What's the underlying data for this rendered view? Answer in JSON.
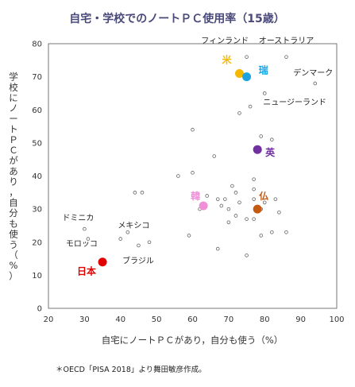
{
  "chart_data": {
    "type": "scatter",
    "title": "自宅・学校でのノートＰＣ使用率（15歳）",
    "xlabel": "自宅にノートＰＣがあり，自分も使う（%）",
    "ylabel": "学校にノートＰＣがあり，自分も使う（%）",
    "xlim": [
      20,
      100
    ],
    "ylim": [
      0,
      80
    ],
    "xticks": [
      20,
      30,
      40,
      50,
      60,
      70,
      80,
      90,
      100
    ],
    "yticks": [
      0,
      10,
      20,
      30,
      40,
      50,
      60,
      70,
      80
    ],
    "grid": false,
    "points": [
      {
        "x": 75,
        "y": 76
      },
      {
        "x": 86,
        "y": 76
      },
      {
        "x": 94,
        "y": 68
      },
      {
        "x": 80,
        "y": 65
      },
      {
        "x": 76,
        "y": 61
      },
      {
        "x": 73,
        "y": 59
      },
      {
        "x": 60,
        "y": 54
      },
      {
        "x": 79,
        "y": 52
      },
      {
        "x": 82,
        "y": 51
      },
      {
        "x": 66,
        "y": 46
      },
      {
        "x": 60,
        "y": 41
      },
      {
        "x": 56,
        "y": 40
      },
      {
        "x": 77,
        "y": 39
      },
      {
        "x": 44,
        "y": 35
      },
      {
        "x": 46,
        "y": 35
      },
      {
        "x": 71,
        "y": 37
      },
      {
        "x": 72,
        "y": 35
      },
      {
        "x": 77,
        "y": 36
      },
      {
        "x": 64,
        "y": 34
      },
      {
        "x": 67,
        "y": 33
      },
      {
        "x": 69,
        "y": 33
      },
      {
        "x": 73,
        "y": 32
      },
      {
        "x": 77,
        "y": 33
      },
      {
        "x": 80,
        "y": 32
      },
      {
        "x": 83,
        "y": 33
      },
      {
        "x": 62,
        "y": 30
      },
      {
        "x": 68,
        "y": 31
      },
      {
        "x": 70,
        "y": 30
      },
      {
        "x": 79,
        "y": 30
      },
      {
        "x": 84,
        "y": 29
      },
      {
        "x": 72,
        "y": 28
      },
      {
        "x": 75,
        "y": 27
      },
      {
        "x": 77,
        "y": 27
      },
      {
        "x": 70,
        "y": 26
      },
      {
        "x": 82,
        "y": 23
      },
      {
        "x": 86,
        "y": 23
      },
      {
        "x": 79,
        "y": 22
      },
      {
        "x": 59,
        "y": 22
      },
      {
        "x": 30,
        "y": 24
      },
      {
        "x": 42,
        "y": 23
      },
      {
        "x": 40,
        "y": 21
      },
      {
        "x": 48,
        "y": 20
      },
      {
        "x": 45,
        "y": 19
      },
      {
        "x": 31,
        "y": 21
      },
      {
        "x": 67,
        "y": 18
      },
      {
        "x": 75,
        "y": 16
      }
    ],
    "highlighted": [
      {
        "label": "米",
        "x": 73,
        "y": 71,
        "color": "#f5b800"
      },
      {
        "label": "瑞",
        "x": 75,
        "y": 70,
        "color": "#1ea3e0"
      },
      {
        "label": "英",
        "x": 78,
        "y": 48,
        "color": "#7030a0"
      },
      {
        "label": "韓",
        "x": 63,
        "y": 31,
        "color": "#f08fd8"
      },
      {
        "label": "仏",
        "x": 78,
        "y": 30,
        "color": "#c55a11"
      },
      {
        "label": "日本",
        "x": 35,
        "y": 14,
        "color": "#e00000"
      }
    ],
    "annotations": [
      {
        "text": "フィンランド",
        "x": 76,
        "y": 77
      },
      {
        "text": "オーストラリア",
        "x": 86,
        "y": 77
      },
      {
        "text": "デンマーク",
        "x": 93,
        "y": 69
      },
      {
        "text": "ニュージーランド",
        "x": 80,
        "y": 62
      },
      {
        "text": "ドミニカ",
        "x": 30,
        "y": 27
      },
      {
        "text": "メキシコ",
        "x": 43,
        "y": 25
      },
      {
        "text": "モロッコ",
        "x": 31,
        "y": 19
      },
      {
        "text": "ブラジル",
        "x": 46,
        "y": 14
      }
    ]
  },
  "note": "＊OECD「PISA 2018」より舞田敏彦作成。"
}
